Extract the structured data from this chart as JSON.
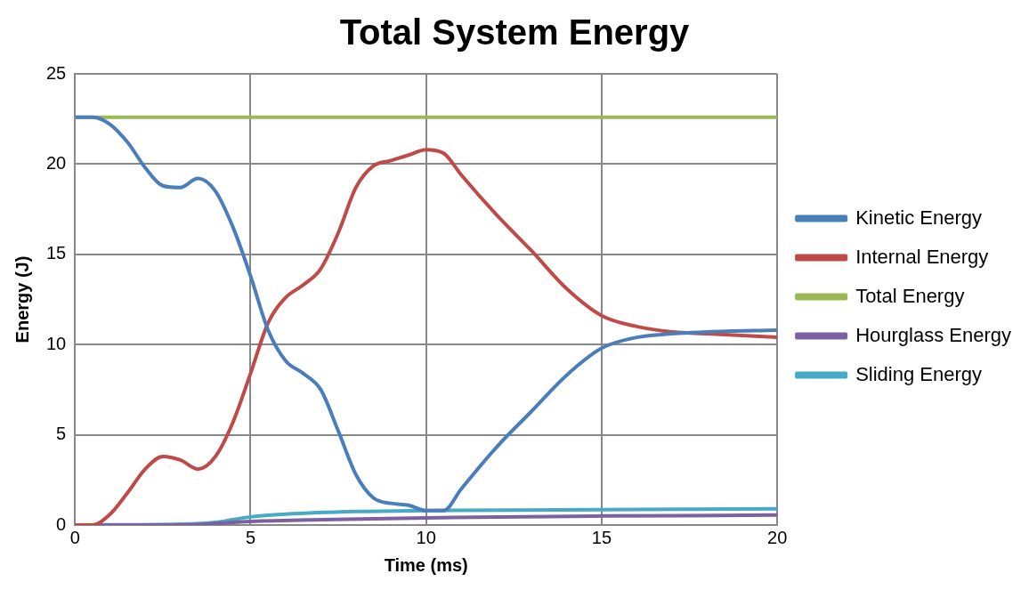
{
  "chart_data": {
    "type": "line",
    "title": "Total System Energy",
    "xlabel": "Time (ms)",
    "ylabel": "Energy (J)",
    "xlim": [
      0,
      20
    ],
    "xticks": [
      0,
      5,
      10,
      15,
      20
    ],
    "ylim": [
      0,
      25
    ],
    "yticks": [
      0,
      5,
      10,
      15,
      20,
      25
    ],
    "grid": true,
    "legend": "right",
    "marker": "none",
    "line_style": "solid",
    "series": [
      {
        "name": "Kinetic Energy",
        "color": "#4a7ebb",
        "x": [
          0,
          0.5,
          1,
          1.5,
          2,
          2.5,
          3,
          3.5,
          4,
          4.5,
          5,
          5.5,
          6,
          6.5,
          7,
          7.5,
          8,
          8.5,
          9,
          9.5,
          10,
          10.5,
          11,
          12,
          13,
          14,
          15,
          16,
          17,
          18,
          20
        ],
        "values": [
          22.6,
          22.6,
          22.2,
          21.2,
          19.8,
          18.8,
          18.7,
          19.2,
          18.5,
          16.5,
          13.8,
          10.8,
          9.1,
          8.4,
          7.5,
          5.2,
          2.8,
          1.5,
          1.2,
          1.1,
          0.8,
          0.8,
          2.0,
          4.3,
          6.3,
          8.3,
          9.8,
          10.4,
          10.6,
          10.7,
          10.8
        ]
      },
      {
        "name": "Internal Energy",
        "color": "#be4b48",
        "x": [
          0,
          0.5,
          1,
          1.5,
          2,
          2.5,
          3,
          3.5,
          4,
          4.5,
          5,
          5.5,
          6,
          6.5,
          7,
          7.5,
          8,
          8.5,
          9,
          9.5,
          10,
          10.5,
          11,
          12,
          13,
          14,
          15,
          16,
          17,
          18,
          20
        ],
        "values": [
          0,
          0,
          0.6,
          1.8,
          3.1,
          3.8,
          3.6,
          3.1,
          3.8,
          5.7,
          8.4,
          11.2,
          12.6,
          13.3,
          14.2,
          16.2,
          18.7,
          19.9,
          20.2,
          20.5,
          20.8,
          20.6,
          19.4,
          17.2,
          15.2,
          13.1,
          11.6,
          11.0,
          10.7,
          10.6,
          10.4
        ]
      },
      {
        "name": "Total Energy",
        "color": "#98b954",
        "x": [
          0,
          5,
          10,
          15,
          20
        ],
        "values": [
          22.6,
          22.6,
          22.6,
          22.6,
          22.6
        ]
      },
      {
        "name": "Hourglass Energy",
        "color": "#7d60a0",
        "x": [
          0,
          3,
          5,
          7,
          10,
          15,
          20
        ],
        "values": [
          0,
          0,
          0.2,
          0.3,
          0.4,
          0.5,
          0.55
        ]
      },
      {
        "name": "Sliding Energy",
        "color": "#46aac5",
        "x": [
          0,
          3,
          4,
          5,
          6,
          8,
          10,
          15,
          20
        ],
        "values": [
          0,
          0.05,
          0.15,
          0.45,
          0.6,
          0.75,
          0.8,
          0.85,
          0.9
        ]
      }
    ]
  }
}
